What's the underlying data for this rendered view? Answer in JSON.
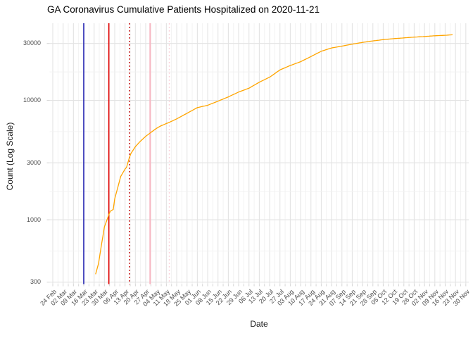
{
  "chart_data": {
    "type": "line",
    "title": "GA Coronavirus Cumulative Patients Hospitalized on 2020-11-21",
    "xlabel": "Date",
    "ylabel": "Count (Log Scale)",
    "y_scale": "log10",
    "legend": "none",
    "panel_background": "#ffffff",
    "grid": {
      "major_color": "#e3e3e3",
      "minor_color": "#f1f1f1",
      "tick_color": "#d4d4d4"
    },
    "ylim_visible": [
      330,
      44000
    ],
    "y_major_ticks": [
      300,
      1000,
      3000,
      10000,
      30000
    ],
    "y_major_tick_labels": [
      "300",
      "1000",
      "3000",
      "10000",
      "30000"
    ],
    "y_minor_gridlines": [
      548,
      1732,
      5477,
      17321
    ],
    "x_start_date": "2020-02-24",
    "x_end_date": "2020-11-30",
    "x_tick_interval_days": 7,
    "x_minor_interval_days": 3.5,
    "x_tick_labels": [
      "24 Feb",
      "02 Mar",
      "09 Mar",
      "16 Mar",
      "23 Mar",
      "30 Mar",
      "06 Apr",
      "13 Apr",
      "20 Apr",
      "27 Apr",
      "04 May",
      "11 May",
      "18 May",
      "25 May",
      "01 Jun",
      "08 Jun",
      "15 Jun",
      "22 Jun",
      "29 Jun",
      "06 Jul",
      "13 Jul",
      "20 Jul",
      "27 Jul",
      "03 Aug",
      "10 Aug",
      "17 Aug",
      "24 Aug",
      "31 Aug",
      "07 Sep",
      "14 Sep",
      "21 Sep",
      "28 Sep",
      "05 Oct",
      "12 Oct",
      "19 Oct",
      "26 Oct",
      "02 Nov",
      "09 Nov",
      "16 Nov",
      "23 Nov",
      "30 Nov"
    ],
    "vlines": [
      {
        "date": "2020-03-16",
        "style": "solid",
        "color": "#2020b0",
        "width": 1.6
      },
      {
        "date": "2020-04-02",
        "style": "solid",
        "color": "#e00000",
        "width": 1.6
      },
      {
        "date": "2020-04-16",
        "style": "dotted",
        "color": "#c00000",
        "width": 1.5
      },
      {
        "date": "2020-04-30",
        "style": "solid",
        "color": "#f8b6c2",
        "width": 2.0
      },
      {
        "date": "2020-05-13",
        "style": "dotted",
        "color": "#fbcfd7",
        "width": 1.5
      }
    ],
    "series": [
      {
        "name": "cumulative-patients-hospitalized",
        "color": "#FFA500",
        "width": 1.3,
        "points": [
          [
            "2020-03-24",
            350
          ],
          [
            "2020-03-26",
            430
          ],
          [
            "2020-03-28",
            620
          ],
          [
            "2020-03-30",
            870
          ],
          [
            "2020-04-02",
            1100
          ],
          [
            "2020-04-03",
            1180
          ],
          [
            "2020-04-05",
            1220
          ],
          [
            "2020-04-06",
            1500
          ],
          [
            "2020-04-08",
            1850
          ],
          [
            "2020-04-10",
            2300
          ],
          [
            "2020-04-13",
            2660
          ],
          [
            "2020-04-14",
            2750
          ],
          [
            "2020-04-16",
            3350
          ],
          [
            "2020-04-17",
            3600
          ],
          [
            "2020-04-20",
            4100
          ],
          [
            "2020-04-23",
            4500
          ],
          [
            "2020-04-27",
            5000
          ],
          [
            "2020-04-30",
            5330
          ],
          [
            "2020-05-04",
            5800
          ],
          [
            "2020-05-07",
            6100
          ],
          [
            "2020-05-11",
            6400
          ],
          [
            "2020-05-13",
            6550
          ],
          [
            "2020-05-18",
            7000
          ],
          [
            "2020-05-25",
            7800
          ],
          [
            "2020-06-01",
            8700
          ],
          [
            "2020-06-08",
            9100
          ],
          [
            "2020-06-15",
            9850
          ],
          [
            "2020-06-22",
            10700
          ],
          [
            "2020-06-29",
            11750
          ],
          [
            "2020-07-06",
            12650
          ],
          [
            "2020-07-13",
            14200
          ],
          [
            "2020-07-20",
            15650
          ],
          [
            "2020-07-27",
            18000
          ],
          [
            "2020-08-03",
            19600
          ],
          [
            "2020-08-10",
            21100
          ],
          [
            "2020-08-17",
            23300
          ],
          [
            "2020-08-24",
            25800
          ],
          [
            "2020-08-31",
            27500
          ],
          [
            "2020-09-07",
            28500
          ],
          [
            "2020-09-14",
            29600
          ],
          [
            "2020-09-21",
            30600
          ],
          [
            "2020-09-28",
            31500
          ],
          [
            "2020-10-05",
            32300
          ],
          [
            "2020-10-12",
            32900
          ],
          [
            "2020-10-19",
            33400
          ],
          [
            "2020-10-26",
            33900
          ],
          [
            "2020-11-02",
            34300
          ],
          [
            "2020-11-09",
            34800
          ],
          [
            "2020-11-16",
            35100
          ],
          [
            "2020-11-21",
            35500
          ]
        ]
      }
    ]
  }
}
